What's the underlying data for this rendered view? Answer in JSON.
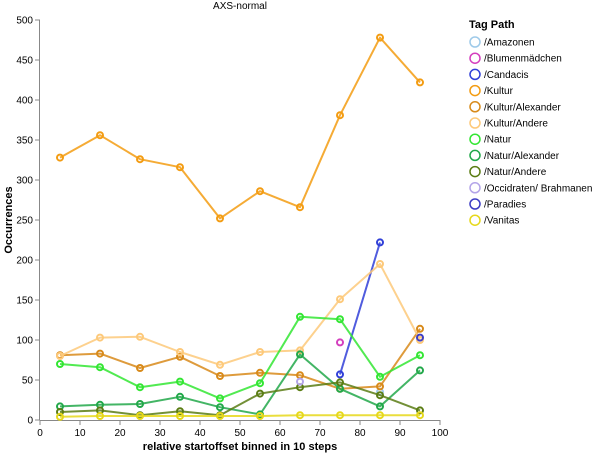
{
  "chart_data": {
    "type": "line",
    "title": "AXS-normal",
    "xlabel": "relative startoffset binned in 10 steps",
    "ylabel": "Occurrences",
    "xlim": [
      0,
      100
    ],
    "ylim": [
      0,
      500
    ],
    "xticks": [
      0,
      10,
      20,
      30,
      40,
      50,
      60,
      70,
      80,
      90,
      100
    ],
    "yticks": [
      0,
      50,
      100,
      150,
      200,
      250,
      300,
      350,
      400,
      450,
      500
    ],
    "grid": false,
    "legend": {
      "title": "Tag Path",
      "position": "right"
    },
    "series": [
      {
        "name": "/Amazonen",
        "color": "#9ecae9",
        "x": [
          85
        ],
        "y": [
          35
        ]
      },
      {
        "name": "/Blumenmädchen",
        "color": "#d43fbe",
        "x": [
          75
        ],
        "y": [
          97
        ]
      },
      {
        "name": "/Candacis",
        "color": "#3140d8",
        "x": [
          75,
          85
        ],
        "y": [
          57,
          222
        ]
      },
      {
        "name": "/Kultur",
        "color": "#f39c12",
        "x": [
          5,
          15,
          25,
          35,
          45,
          55,
          65,
          75,
          85,
          95
        ],
        "y": [
          328,
          356,
          326,
          316,
          252,
          286,
          266,
          381,
          478,
          422
        ]
      },
      {
        "name": "/Kultur/Alexander",
        "color": "#d88a1a",
        "x": [
          5,
          15,
          25,
          35,
          45,
          55,
          65,
          75,
          85,
          95
        ],
        "y": [
          81,
          83,
          65,
          79,
          55,
          59,
          56,
          39,
          42,
          114
        ]
      },
      {
        "name": "/Kultur/Andere",
        "color": "#fdc97a",
        "x": [
          5,
          15,
          25,
          35,
          45,
          55,
          65,
          75,
          85,
          95
        ],
        "y": [
          80,
          103,
          104,
          85,
          69,
          85,
          87,
          151,
          195,
          100
        ]
      },
      {
        "name": "/Natur",
        "color": "#33e633",
        "x": [
          5,
          15,
          25,
          35,
          45,
          55,
          65,
          75,
          85,
          95
        ],
        "y": [
          70,
          66,
          41,
          48,
          27,
          46,
          129,
          126,
          54,
          81
        ]
      },
      {
        "name": "/Natur/Alexander",
        "color": "#22a84a",
        "x": [
          5,
          15,
          25,
          35,
          45,
          55,
          65,
          75,
          85,
          95
        ],
        "y": [
          17,
          19,
          20,
          29,
          16,
          7,
          82,
          39,
          17,
          62
        ]
      },
      {
        "name": "/Natur/Andere",
        "color": "#5b7d14",
        "x": [
          5,
          15,
          25,
          35,
          45,
          55,
          65,
          75,
          85,
          95
        ],
        "y": [
          10,
          12,
          6,
          11,
          6,
          33,
          41,
          47,
          31,
          12
        ]
      },
      {
        "name": "/Occidraten/ Brahmanen",
        "color": "#b3a4e8",
        "x": [
          65
        ],
        "y": [
          48
        ]
      },
      {
        "name": "/Paradies",
        "color": "#3d3dc4",
        "x": [
          95
        ],
        "y": [
          103
        ]
      },
      {
        "name": "/Vanitas",
        "color": "#e6d81a",
        "x": [
          5,
          15,
          25,
          35,
          45,
          55,
          65,
          75,
          85,
          95
        ],
        "y": [
          4,
          5,
          5,
          5,
          5,
          5,
          6,
          6,
          6,
          6
        ]
      }
    ]
  }
}
